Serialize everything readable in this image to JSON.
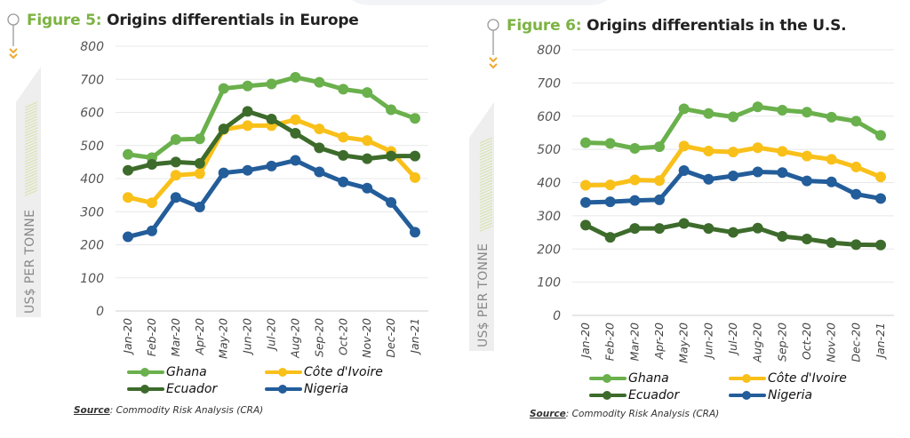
{
  "colors": {
    "Ghana": "#6ab04c",
    "Côte d'Ivoire": "#f9c01a",
    "Ecuador": "#3d6b2b",
    "Nigeria": "#235d9a",
    "figure_label": "#7cb342",
    "accent_arrow": "#f0a830"
  },
  "chart_data": [
    {
      "type": "line",
      "title": "Origins differentials in Europe",
      "figure_label": "Figure 5:",
      "xlabel": "",
      "ylabel": "US$ PER TONNE",
      "ylim": [
        0,
        800
      ],
      "yticks": [
        0,
        100,
        200,
        300,
        400,
        500,
        600,
        700,
        800
      ],
      "grid": true,
      "legend": "bottom",
      "x": [
        "Jan-20",
        "Feb-20",
        "Mar-20",
        "Apr-20",
        "May-20",
        "Jun-20",
        "Jul-20",
        "Aug-20",
        "Sep-20",
        "Oct-20",
        "Nov-20",
        "Dec-20",
        "Jan-21"
      ],
      "series": [
        {
          "name": "Ghana",
          "values": [
            473,
            463,
            518,
            520,
            672,
            680,
            686,
            706,
            691,
            670,
            660,
            608,
            582
          ]
        },
        {
          "name": "Côte d'Ivoire",
          "values": [
            343,
            327,
            410,
            415,
            548,
            560,
            560,
            578,
            550,
            525,
            515,
            482,
            403
          ]
        },
        {
          "name": "Ecuador",
          "values": [
            425,
            443,
            450,
            446,
            550,
            603,
            580,
            537,
            493,
            470,
            460,
            468,
            468
          ]
        },
        {
          "name": "Nigeria",
          "values": [
            224,
            242,
            343,
            314,
            417,
            425,
            438,
            455,
            420,
            390,
            371,
            328,
            238
          ]
        }
      ],
      "source_label": "Source",
      "source_text": ": Commodity Risk Analysis (CRA)"
    },
    {
      "type": "line",
      "title": "Origins differentials in the U.S.",
      "figure_label": "Figure 6:",
      "xlabel": "",
      "ylabel": "US$ PER TONNE",
      "ylim": [
        0,
        800
      ],
      "yticks": [
        0,
        100,
        200,
        300,
        400,
        500,
        600,
        700,
        800
      ],
      "grid": true,
      "legend": "bottom",
      "x": [
        "Jan-20",
        "Feb-20",
        "Mar-20",
        "Apr-20",
        "May-20",
        "Jun-20",
        "Jul-20",
        "Aug-20",
        "Sep-20",
        "Oct-20",
        "Nov-20",
        "Dec-20",
        "Jan-21"
      ],
      "series": [
        {
          "name": "Ghana",
          "values": [
            520,
            518,
            503,
            508,
            622,
            608,
            598,
            628,
            618,
            612,
            597,
            585,
            542
          ]
        },
        {
          "name": "Côte d'Ivoire",
          "values": [
            392,
            393,
            408,
            406,
            510,
            495,
            492,
            505,
            494,
            480,
            470,
            447,
            417
          ]
        },
        {
          "name": "Ecuador",
          "values": [
            272,
            235,
            262,
            262,
            277,
            262,
            250,
            263,
            238,
            230,
            219,
            213,
            212
          ]
        },
        {
          "name": "Nigeria",
          "values": [
            340,
            342,
            346,
            348,
            436,
            410,
            420,
            432,
            430,
            405,
            402,
            365,
            352
          ]
        }
      ],
      "source_label": "Source",
      "source_text": ": Commodity Risk Analysis (CRA)"
    }
  ],
  "legend_order": [
    "Ghana",
    "Côte d'Ivoire",
    "Ecuador",
    "Nigeria"
  ]
}
